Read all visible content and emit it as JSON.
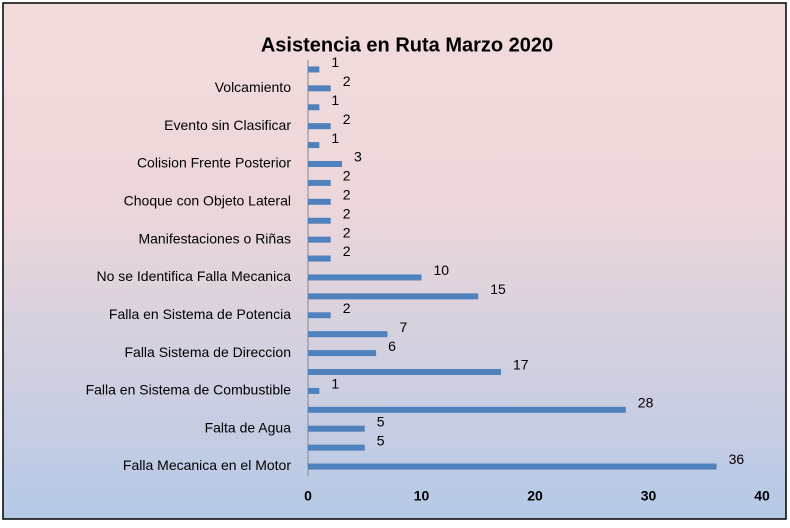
{
  "chart_data": {
    "type": "bar",
    "orientation": "horizontal",
    "title": "Asistencia en Ruta Marzo 2020",
    "categories": [
      null,
      "Volcamiento",
      null,
      "Evento sin Clasificar",
      null,
      "Colision Frente Posterior",
      null,
      "Choque con Objeto Lateral",
      null,
      "Manifestaciones o Riñas",
      null,
      "No se Identifica Falla Mecanica",
      null,
      "Falla en Sistema de Potencia",
      null,
      "Falla Sistema de Direccion",
      null,
      "Falla en Sistema de Combustible",
      null,
      "Falta de Agua",
      null,
      "Falla Mecanica en el Motor"
    ],
    "values": [
      1,
      2,
      1,
      2,
      1,
      3,
      2,
      2,
      2,
      2,
      2,
      10,
      15,
      2,
      7,
      6,
      17,
      1,
      28,
      5,
      5,
      36
    ],
    "color": "#4f81bd",
    "xlim": [
      0,
      40
    ],
    "xticks": [
      0,
      10,
      20,
      30,
      40
    ],
    "grid": false
  }
}
